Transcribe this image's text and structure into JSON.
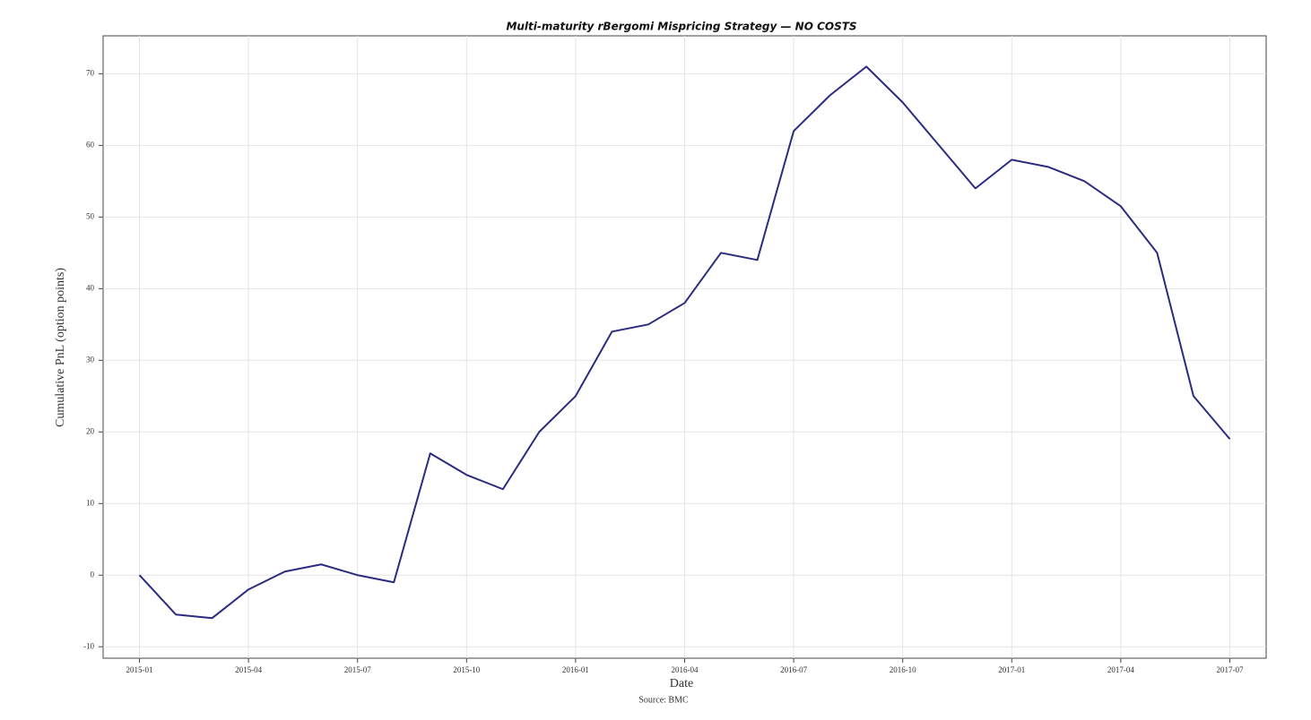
{
  "chart_data": {
    "type": "line",
    "title": "Multi-maturity rBergomi Mispricing Strategy — NO COSTS",
    "x_label": "Date",
    "y_label": "Cumulative PnL (option points)",
    "source": "Source: BMC",
    "x": [
      "2015-01",
      "2015-02",
      "2015-03",
      "2015-04",
      "2015-05",
      "2015-06",
      "2015-07",
      "2015-08",
      "2015-09",
      "2015-10",
      "2015-11",
      "2015-12",
      "2016-01",
      "2016-02",
      "2016-03",
      "2016-04",
      "2016-05",
      "2016-06",
      "2016-07",
      "2016-08",
      "2016-09",
      "2016-10",
      "2016-11",
      "2016-12",
      "2017-01",
      "2017-02",
      "2017-03",
      "2017-04",
      "2017-05",
      "2017-06",
      "2017-07"
    ],
    "series": [
      {
        "name": "Cumulative PnL",
        "color": "#2b2b80",
        "values": [
          0,
          -5.5,
          -6,
          -2,
          0.5,
          1.5,
          0,
          -1,
          17,
          14,
          12,
          20,
          25,
          34,
          35,
          38,
          45,
          44,
          62,
          67,
          71,
          66,
          60,
          54,
          58,
          57,
          55,
          51.5,
          45,
          25,
          19
        ]
      }
    ],
    "xlim": [
      "2014-12",
      "2017-08"
    ],
    "xticks": [
      "2015-01",
      "2015-04",
      "2015-07",
      "2015-10",
      "2016-01",
      "2016-04",
      "2016-07",
      "2016-10",
      "2017-01",
      "2017-04",
      "2017-07"
    ],
    "ylim": [
      -11.6,
      75.3
    ],
    "yticks": [
      -10,
      0,
      10,
      20,
      30,
      40,
      50,
      60,
      70
    ],
    "grid": true
  }
}
